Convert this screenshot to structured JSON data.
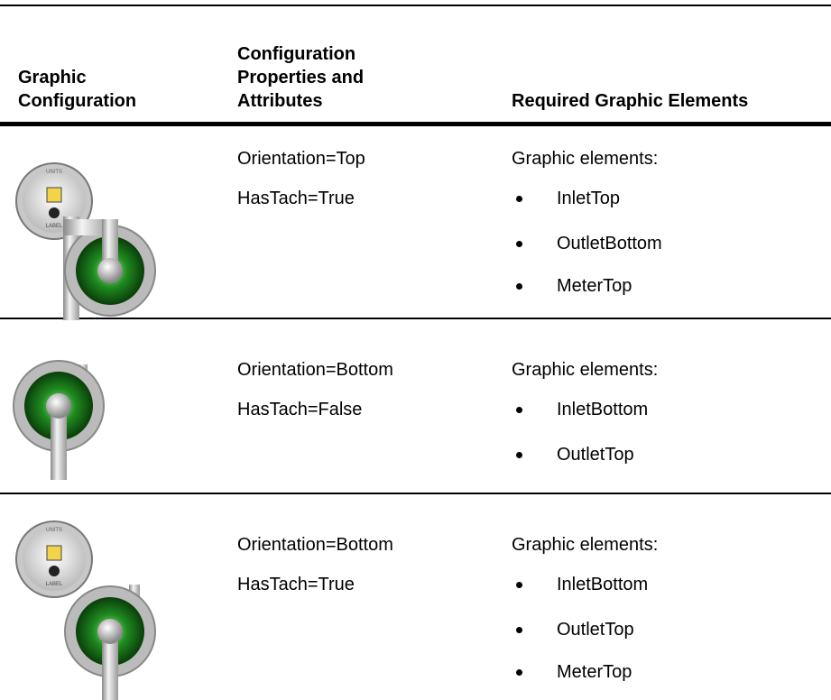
{
  "table": {
    "headers": [
      "Graphic Configuration",
      "Configuration Properties and Attributes",
      "Required Graphic Elements"
    ],
    "rows": [
      {
        "gauge": {
          "units": "UNITS",
          "label": "LABEL"
        },
        "properties": [
          "Orientation=Top",
          "HasTach=True"
        ],
        "elements_heading": "Graphic elements:",
        "elements": [
          "InletTop",
          "OutletBottom",
          "MeterTop"
        ]
      },
      {
        "properties": [
          "Orientation=Bottom",
          "HasTach=False"
        ],
        "elements_heading": "Graphic elements:",
        "elements": [
          "InletBottom",
          "OutletTop"
        ]
      },
      {
        "gauge": {
          "units": "UNITS",
          "label": "LABEL"
        },
        "properties": [
          "Orientation=Bottom",
          "HasTach=True"
        ],
        "elements_heading": "Graphic elements:",
        "elements": [
          "InletBottom",
          "OutletTop",
          "MeterTop"
        ]
      }
    ]
  }
}
